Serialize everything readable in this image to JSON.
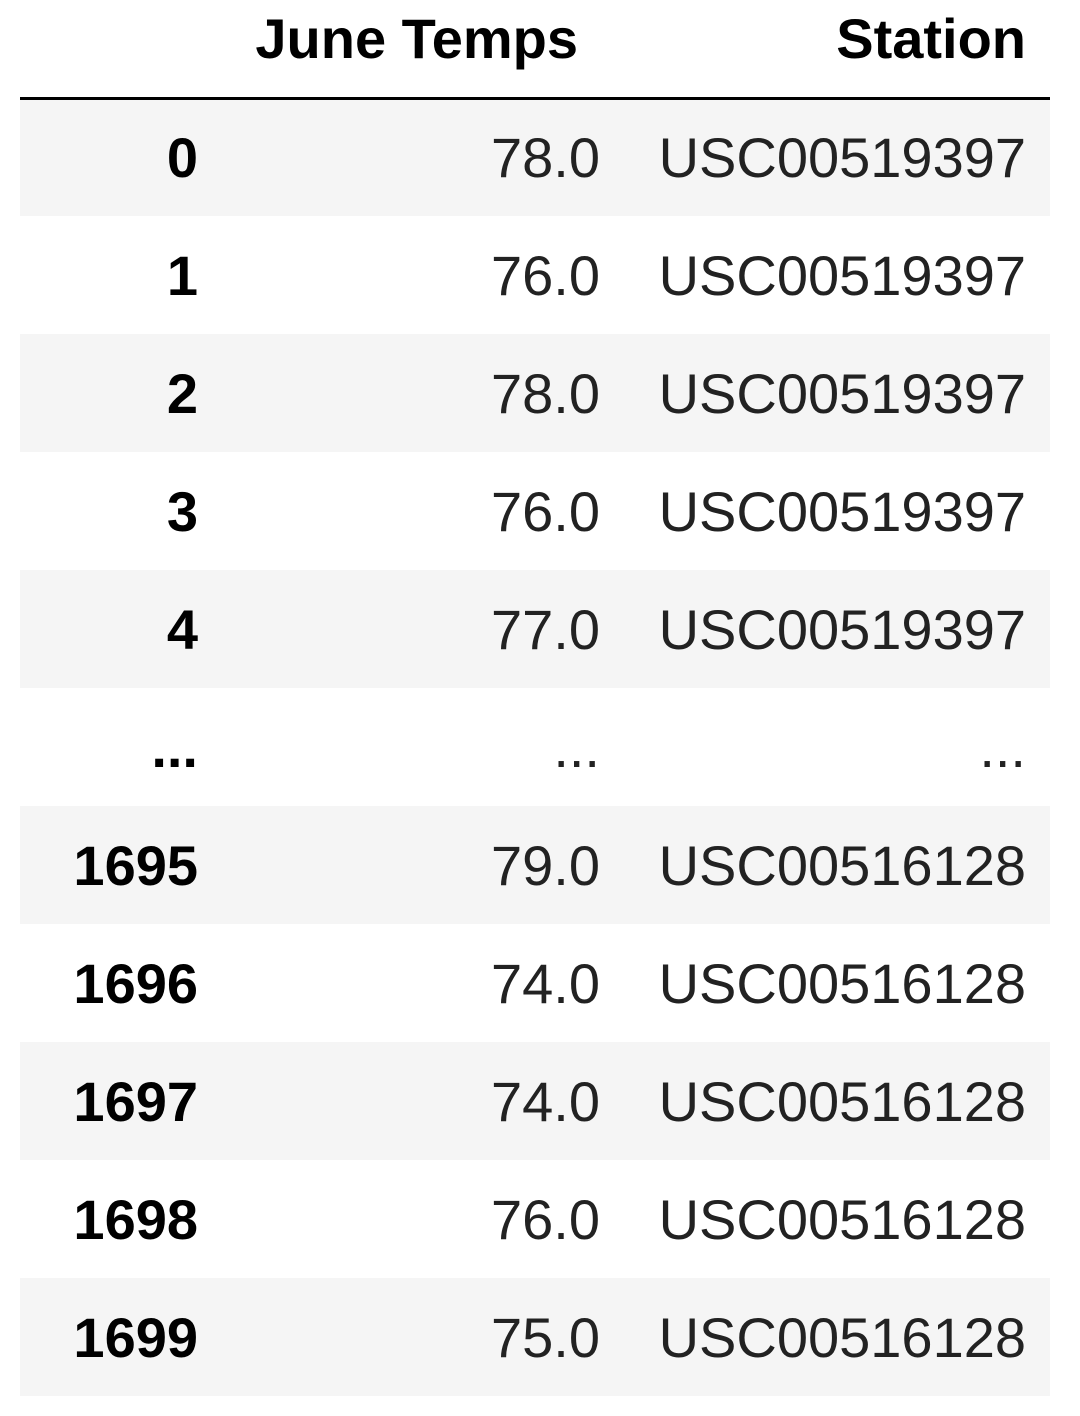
{
  "table": {
    "columns": [
      {
        "label": ""
      },
      {
        "label": "June Temps"
      },
      {
        "label": "Station"
      }
    ],
    "rows": [
      {
        "index": "0",
        "temp": "78.0",
        "station": "USC00519397"
      },
      {
        "index": "1",
        "temp": "76.0",
        "station": "USC00519397"
      },
      {
        "index": "2",
        "temp": "78.0",
        "station": "USC00519397"
      },
      {
        "index": "3",
        "temp": "76.0",
        "station": "USC00519397"
      },
      {
        "index": "4",
        "temp": "77.0",
        "station": "USC00519397"
      },
      {
        "index": "...",
        "temp": "...",
        "station": "..."
      },
      {
        "index": "1695",
        "temp": "79.0",
        "station": "USC00516128"
      },
      {
        "index": "1696",
        "temp": "74.0",
        "station": "USC00516128"
      },
      {
        "index": "1697",
        "temp": "74.0",
        "station": "USC00516128"
      },
      {
        "index": "1698",
        "temp": "76.0",
        "station": "USC00516128"
      },
      {
        "index": "1699",
        "temp": "75.0",
        "station": "USC00516128"
      }
    ]
  },
  "colors": {
    "row_shade": "#f5f5f5",
    "text": "#000000",
    "header_rule": "#000000"
  }
}
